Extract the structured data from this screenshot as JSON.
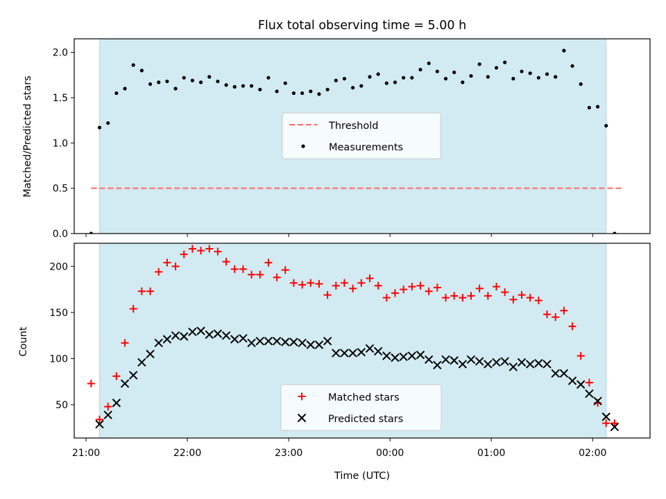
{
  "figure": {
    "title": "Flux total observing time = 5.00 h"
  },
  "chart_data": [
    {
      "type": "scatter",
      "title": "Flux total observing time = 5.00 h",
      "xlabel": "",
      "ylabel": "Matched/Predicted stars",
      "xlim": [
        "20:53",
        "02:34"
      ],
      "ylim": [
        0,
        2.15
      ],
      "yticks": [
        "0.0",
        "0.5",
        "1.0",
        "1.5",
        "2.0"
      ],
      "observing_window": {
        "start": "21:08",
        "end": "02:08",
        "color": "#add8e6"
      },
      "series": [
        {
          "name": "Threshold",
          "style": "dashed-line",
          "color": "#ff6b6b",
          "points": [
            [
              "21:03",
              0.5
            ],
            [
              "02:18",
              0.5
            ]
          ]
        },
        {
          "name": "Measurements",
          "style": "dots",
          "color": "#000000",
          "points": [
            [
              "21:03",
              0.0
            ],
            [
              "21:08",
              1.17
            ],
            [
              "21:13",
              1.22
            ],
            [
              "21:18",
              1.55
            ],
            [
              "21:23",
              1.6
            ],
            [
              "21:28",
              1.86
            ],
            [
              "21:33",
              1.8
            ],
            [
              "21:38",
              1.65
            ],
            [
              "21:43",
              1.67
            ],
            [
              "21:48",
              1.68
            ],
            [
              "21:53",
              1.6
            ],
            [
              "21:58",
              1.72
            ],
            [
              "22:03",
              1.69
            ],
            [
              "22:08",
              1.67
            ],
            [
              "22:13",
              1.73
            ],
            [
              "22:18",
              1.68
            ],
            [
              "22:23",
              1.64
            ],
            [
              "22:28",
              1.62
            ],
            [
              "22:33",
              1.63
            ],
            [
              "22:38",
              1.63
            ],
            [
              "22:43",
              1.59
            ],
            [
              "22:48",
              1.72
            ],
            [
              "22:53",
              1.57
            ],
            [
              "22:58",
              1.66
            ],
            [
              "23:03",
              1.55
            ],
            [
              "23:08",
              1.55
            ],
            [
              "23:13",
              1.57
            ],
            [
              "23:18",
              1.54
            ],
            [
              "23:23",
              1.59
            ],
            [
              "23:28",
              1.69
            ],
            [
              "23:33",
              1.71
            ],
            [
              "23:38",
              1.61
            ],
            [
              "23:43",
              1.63
            ],
            [
              "23:48",
              1.73
            ],
            [
              "23:53",
              1.76
            ],
            [
              "23:58",
              1.66
            ],
            [
              "00:03",
              1.67
            ],
            [
              "00:08",
              1.72
            ],
            [
              "00:13",
              1.72
            ],
            [
              "00:18",
              1.81
            ],
            [
              "00:23",
              1.88
            ],
            [
              "00:28",
              1.79
            ],
            [
              "00:33",
              1.71
            ],
            [
              "00:38",
              1.78
            ],
            [
              "00:43",
              1.67
            ],
            [
              "00:48",
              1.74
            ],
            [
              "00:53",
              1.87
            ],
            [
              "00:58",
              1.73
            ],
            [
              "01:03",
              1.83
            ],
            [
              "01:08",
              1.89
            ],
            [
              "01:13",
              1.71
            ],
            [
              "01:18",
              1.79
            ],
            [
              "01:23",
              1.77
            ],
            [
              "01:28",
              1.72
            ],
            [
              "01:33",
              1.76
            ],
            [
              "01:38",
              1.73
            ],
            [
              "01:43",
              2.02
            ],
            [
              "01:48",
              1.85
            ],
            [
              "01:53",
              1.65
            ],
            [
              "01:58",
              1.39
            ],
            [
              "02:03",
              1.4
            ],
            [
              "02:08",
              1.19
            ],
            [
              "02:13",
              0.0
            ]
          ]
        }
      ],
      "legend": {
        "placement": "center"
      }
    },
    {
      "type": "scatter",
      "xlabel": "Time (UTC)",
      "ylabel": "Count",
      "xlim": [
        "20:53",
        "02:34"
      ],
      "ylim": [
        14,
        225
      ],
      "xticks": [
        "21:00",
        "22:00",
        "23:00",
        "00:00",
        "01:00",
        "02:00"
      ],
      "yticks": [
        "50",
        "100",
        "150",
        "200"
      ],
      "observing_window": {
        "start": "21:08",
        "end": "02:08",
        "color": "#add8e6"
      },
      "series": [
        {
          "name": "Matched stars",
          "marker": "+",
          "color": "#ff0000",
          "points": [
            [
              "21:03",
              73
            ],
            [
              "21:08",
              34
            ],
            [
              "21:13",
              48
            ],
            [
              "21:18",
              81
            ],
            [
              "21:23",
              117
            ],
            [
              "21:28",
              154
            ],
            [
              "21:33",
              173
            ],
            [
              "21:38",
              173
            ],
            [
              "21:43",
              194
            ],
            [
              "21:48",
              204
            ],
            [
              "21:53",
              200
            ],
            [
              "21:58",
              213
            ],
            [
              "22:03",
              219
            ],
            [
              "22:08",
              217
            ],
            [
              "22:13",
              219
            ],
            [
              "22:18",
              216
            ],
            [
              "22:23",
              205
            ],
            [
              "22:28",
              197
            ],
            [
              "22:33",
              197
            ],
            [
              "22:38",
              191
            ],
            [
              "22:43",
              191
            ],
            [
              "22:48",
              204
            ],
            [
              "22:53",
              188
            ],
            [
              "22:58",
              196
            ],
            [
              "23:03",
              182
            ],
            [
              "23:08",
              180
            ],
            [
              "23:13",
              182
            ],
            [
              "23:18",
              181
            ],
            [
              "23:23",
              169
            ],
            [
              "23:28",
              179
            ],
            [
              "23:33",
              182
            ],
            [
              "23:38",
              176
            ],
            [
              "23:43",
              182
            ],
            [
              "23:48",
              187
            ],
            [
              "23:53",
              179
            ],
            [
              "23:58",
              166
            ],
            [
              "00:03",
              171
            ],
            [
              "00:08",
              175
            ],
            [
              "00:13",
              178
            ],
            [
              "00:18",
              179
            ],
            [
              "00:23",
              173
            ],
            [
              "00:28",
              177
            ],
            [
              "00:33",
              166
            ],
            [
              "00:38",
              168
            ],
            [
              "00:43",
              166
            ],
            [
              "00:48",
              168
            ],
            [
              "00:53",
              176
            ],
            [
              "00:58",
              168
            ],
            [
              "01:03",
              178
            ],
            [
              "01:08",
              172
            ],
            [
              "01:13",
              164
            ],
            [
              "01:18",
              169
            ],
            [
              "01:23",
              166
            ],
            [
              "01:28",
              163
            ],
            [
              "01:33",
              148
            ],
            [
              "01:38",
              145
            ],
            [
              "01:43",
              152
            ],
            [
              "01:48",
              135
            ],
            [
              "01:53",
              103
            ],
            [
              "01:58",
              74
            ],
            [
              "02:03",
              52
            ],
            [
              "02:08",
              30
            ],
            [
              "02:13",
              30
            ]
          ]
        },
        {
          "name": "Predicted stars",
          "marker": "x",
          "color": "#000000",
          "points": [
            [
              "21:08",
              29
            ],
            [
              "21:13",
              39
            ],
            [
              "21:18",
              52
            ],
            [
              "21:23",
              73
            ],
            [
              "21:28",
              82
            ],
            [
              "21:33",
              96
            ],
            [
              "21:38",
              105
            ],
            [
              "21:43",
              117
            ],
            [
              "21:48",
              121
            ],
            [
              "21:53",
              125
            ],
            [
              "21:58",
              124
            ],
            [
              "22:03",
              129
            ],
            [
              "22:08",
              130
            ],
            [
              "22:13",
              126
            ],
            [
              "22:18",
              127
            ],
            [
              "22:23",
              125
            ],
            [
              "22:28",
              121
            ],
            [
              "22:33",
              122
            ],
            [
              "22:38",
              117
            ],
            [
              "22:43",
              119
            ],
            [
              "22:48",
              119
            ],
            [
              "22:53",
              119
            ],
            [
              "22:58",
              118
            ],
            [
              "23:03",
              118
            ],
            [
              "23:08",
              117
            ],
            [
              "23:13",
              115
            ],
            [
              "23:18",
              115
            ],
            [
              "23:23",
              119
            ],
            [
              "23:28",
              106
            ],
            [
              "23:33",
              106
            ],
            [
              "23:38",
              106
            ],
            [
              "23:43",
              107
            ],
            [
              "23:48",
              111
            ],
            [
              "23:53",
              108
            ],
            [
              "23:58",
              103
            ],
            [
              "00:03",
              101
            ],
            [
              "00:08",
              102
            ],
            [
              "00:13",
              103
            ],
            [
              "00:18",
              104
            ],
            [
              "00:23",
              99
            ],
            [
              "00:28",
              93
            ],
            [
              "00:33",
              99
            ],
            [
              "00:38",
              98
            ],
            [
              "00:43",
              94
            ],
            [
              "00:48",
              99
            ],
            [
              "00:53",
              97
            ],
            [
              "00:58",
              94
            ],
            [
              "01:03",
              96
            ],
            [
              "01:08",
              97
            ],
            [
              "01:13",
              91
            ],
            [
              "01:18",
              96
            ],
            [
              "01:23",
              94
            ],
            [
              "01:28",
              95
            ],
            [
              "01:33",
              94
            ],
            [
              "01:38",
              84
            ],
            [
              "01:43",
              84
            ],
            [
              "01:48",
              76
            ],
            [
              "01:53",
              72
            ],
            [
              "01:58",
              62
            ],
            [
              "02:03",
              54
            ],
            [
              "02:08",
              37
            ],
            [
              "02:13",
              26
            ]
          ]
        }
      ],
      "legend": {
        "placement": "lower center"
      }
    }
  ]
}
